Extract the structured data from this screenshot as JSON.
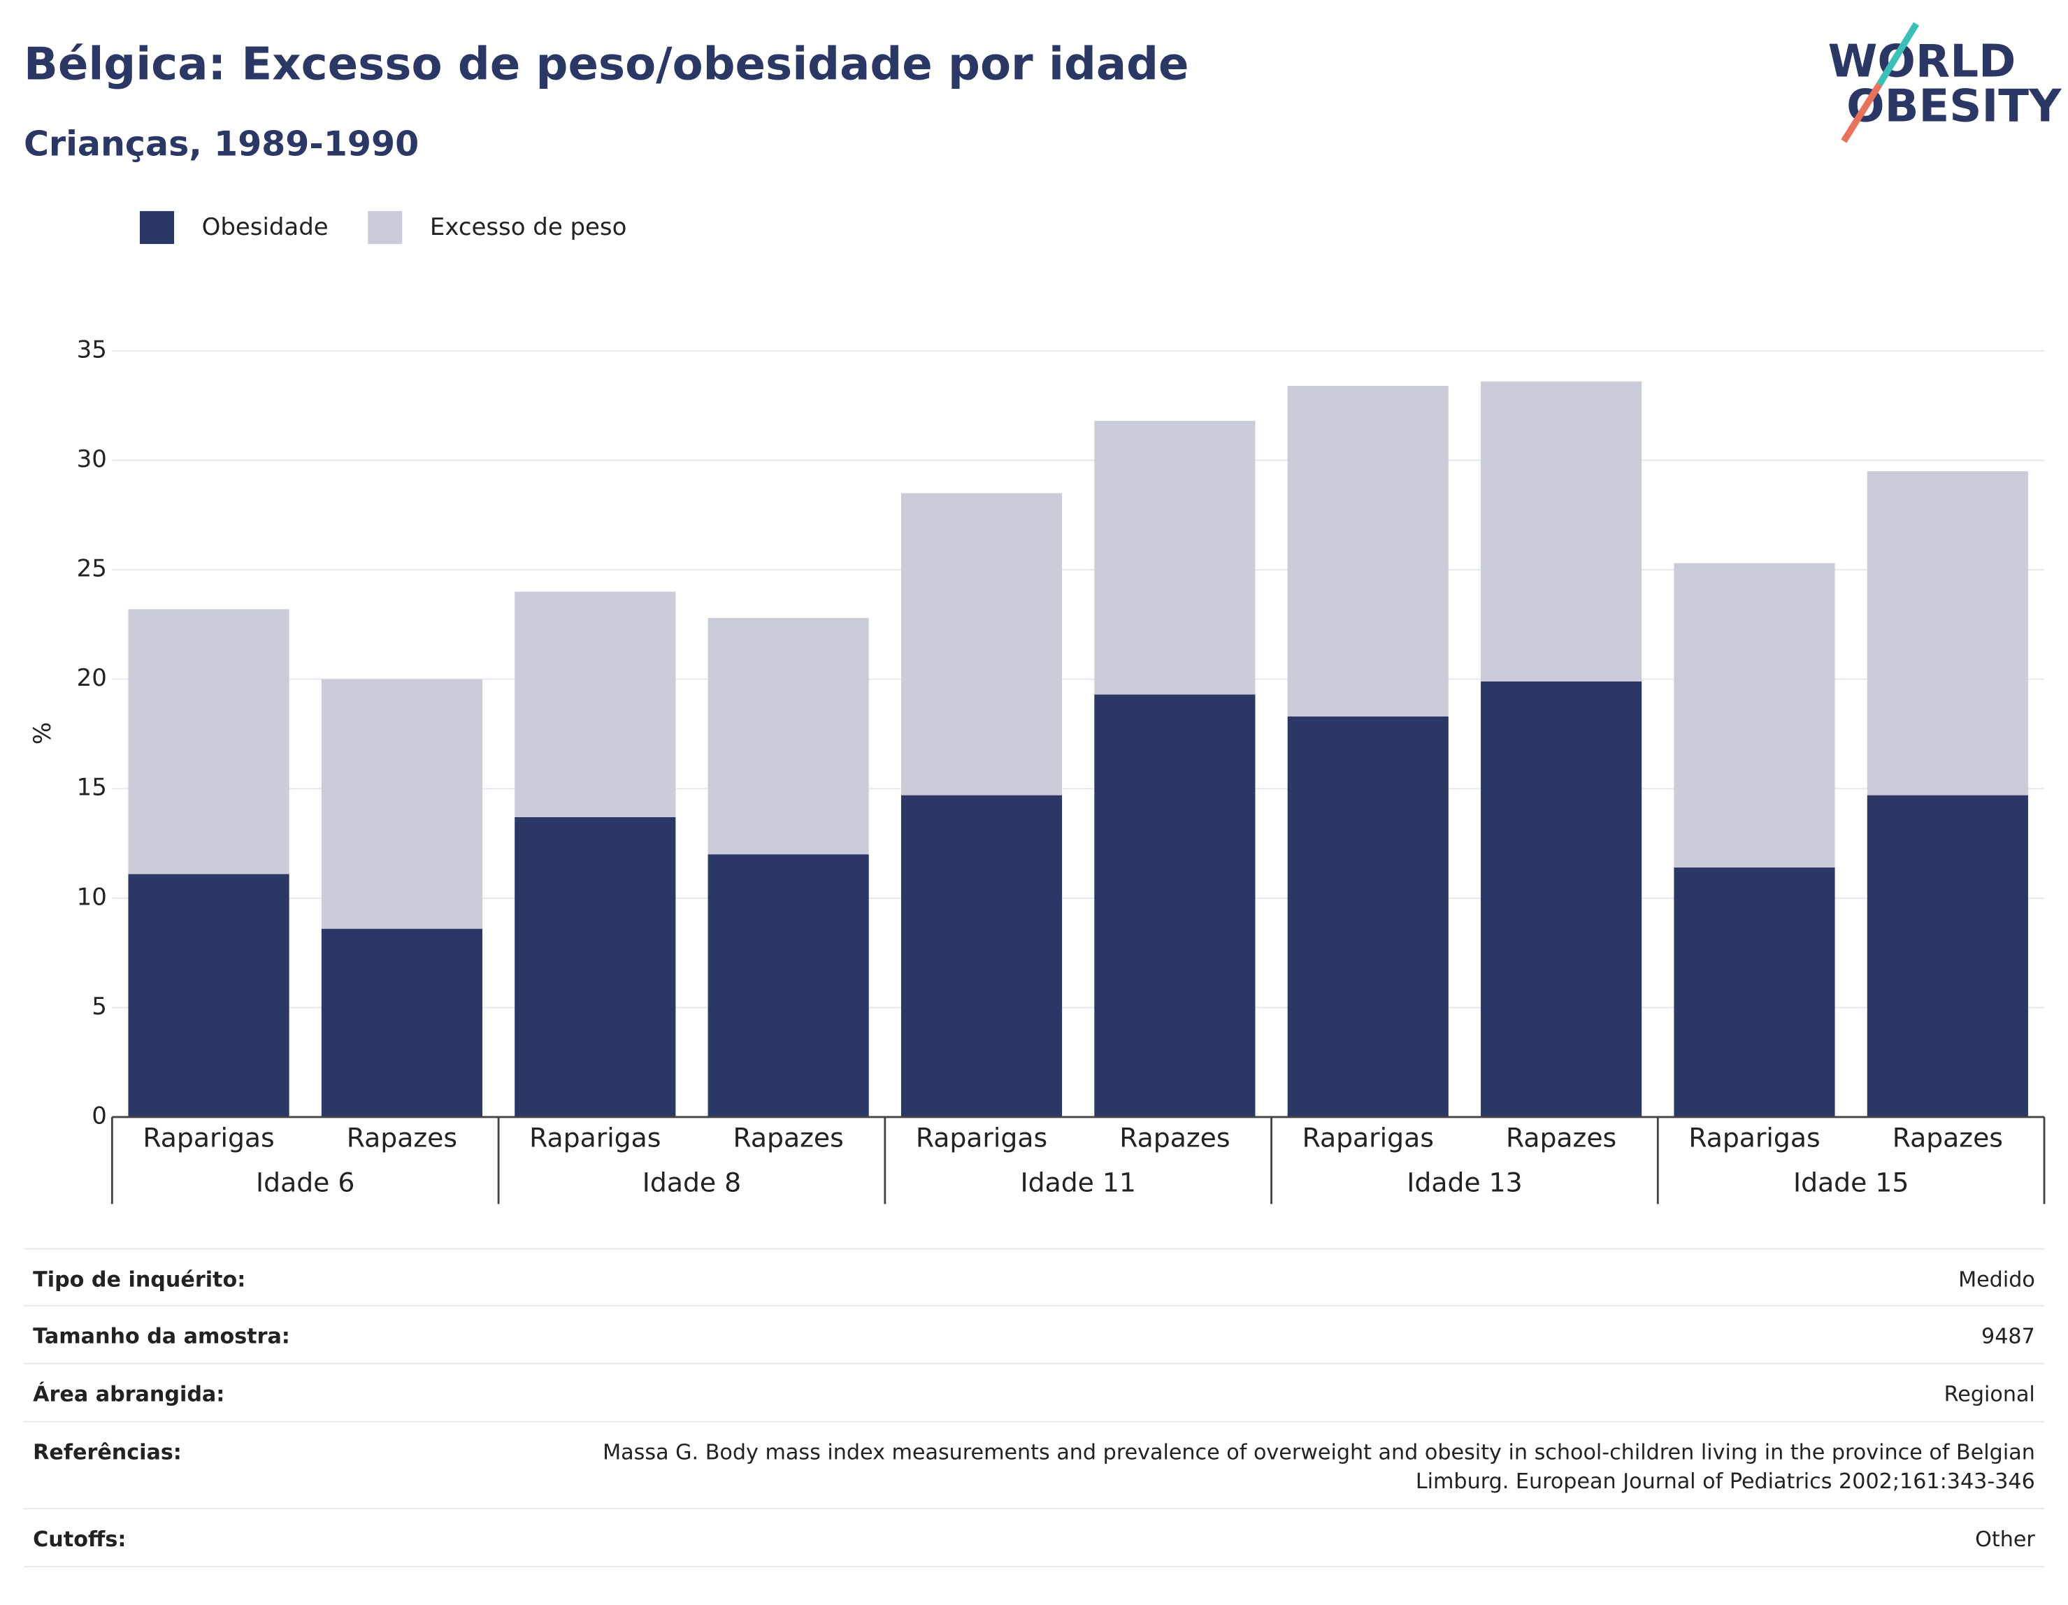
{
  "chart_data": {
    "type": "stacked_bar",
    "title": "Bélgica: Excesso de peso/obesidade por idade",
    "subtitle": "Crianças, 1989-1990",
    "y_label": "%",
    "categories": [
      "Raparigas",
      "Rapazes",
      "Raparigas",
      "Rapazes",
      "Raparigas",
      "Rapazes",
      "Raparigas",
      "Rapazes",
      "Raparigas",
      "Rapazes"
    ],
    "groups": [
      "Idade 6",
      "Idade 8",
      "Idade 11",
      "Idade 13",
      "Idade 15"
    ],
    "series": [
      {
        "name": "Obesidade",
        "color": "#2b3764",
        "values": [
          11.1,
          8.6,
          13.7,
          12.0,
          14.7,
          19.3,
          18.3,
          19.9,
          11.4,
          14.7
        ]
      },
      {
        "name": "Excesso de peso",
        "color": "#cbccd9",
        "values": [
          12.1,
          11.4,
          10.3,
          10.8,
          13.8,
          12.5,
          15.1,
          13.7,
          13.9,
          14.8
        ]
      }
    ],
    "ylim": [
      0,
      35
    ],
    "yticks": [
      0,
      5,
      10,
      15,
      20,
      25,
      30,
      35
    ],
    "grid": true
  },
  "logo": {
    "line1": "WORLD",
    "line2": "OBESITY"
  },
  "info_table": [
    {
      "label": "Tipo de inquérito:",
      "value": [
        "Medido"
      ]
    },
    {
      "label": "Tamanho da amostra:",
      "value": [
        "9487"
      ]
    },
    {
      "label": "Área abrangida:",
      "value": [
        "Regional"
      ]
    },
    {
      "label": "Referências:",
      "value": [
        "Massa G. Body mass index measurements and prevalence of overweight and obesity in school-children living in the province of Belgian",
        "Limburg. European Journal of Pediatrics 2002;161:343-346"
      ]
    },
    {
      "label": "Cutoffs:",
      "value": [
        "Other"
      ]
    }
  ]
}
